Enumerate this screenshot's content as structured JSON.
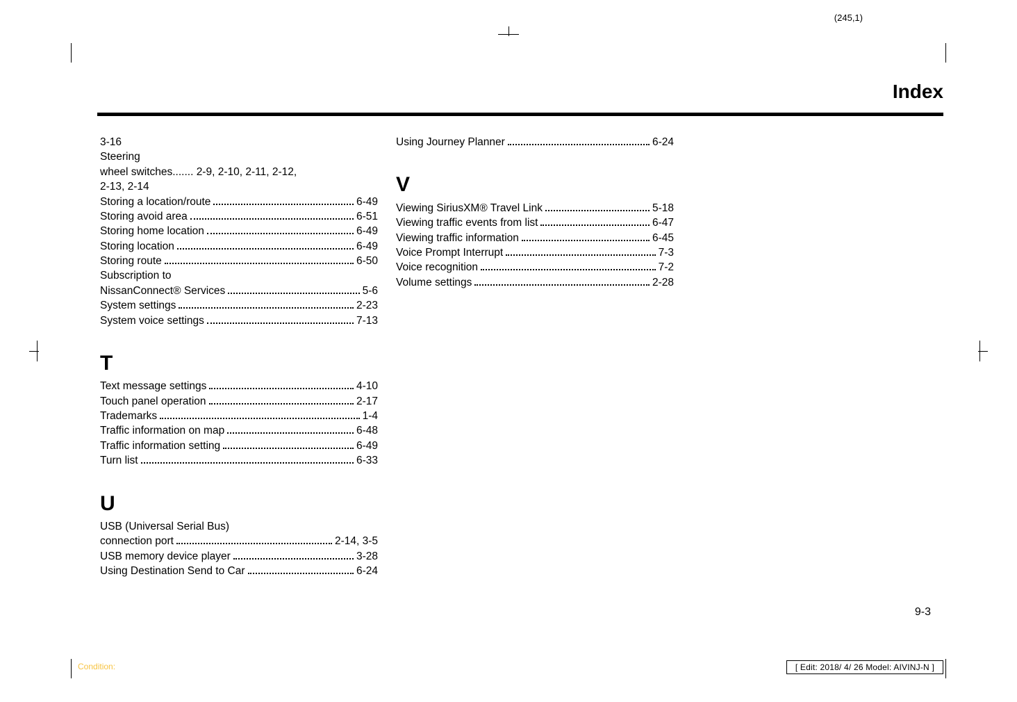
{
  "meta": {
    "top_pageref": "(245,1)",
    "page_title": "Index",
    "page_number": "9-3",
    "condition_label": "Condition:",
    "edit_line": "[ Edit: 2018/ 4/ 26    Model: AIVINJ-N ]"
  },
  "col1": {
    "lead_lines": [
      "3-16",
      "Steering",
      "wheel switches....... 2-9, 2-10, 2-11, 2-12,",
      "2-13, 2-14"
    ],
    "entries_a": [
      {
        "label": "Storing a location/route",
        "ref": "6-49"
      },
      {
        "label": "Storing avoid area",
        "ref": "6-51"
      },
      {
        "label": "Storing home location",
        "ref": "6-49"
      },
      {
        "label": "Storing location",
        "ref": "6-49"
      },
      {
        "label": "Storing route",
        "ref": "6-50"
      }
    ],
    "sub_lines": [
      "Subscription to"
    ],
    "entries_b": [
      {
        "label": "NissanConnect® Services",
        "ref": "5-6"
      },
      {
        "label": "System settings",
        "ref": "2-23"
      },
      {
        "label": "System voice settings",
        "ref": "7-13"
      }
    ],
    "section_T": "T",
    "entries_T": [
      {
        "label": "Text message settings",
        "ref": "4-10"
      },
      {
        "label": "Touch panel operation",
        "ref": "2-17"
      },
      {
        "label": "Trademarks",
        "ref": "1-4"
      },
      {
        "label": "Traffic information on map",
        "ref": "6-48"
      },
      {
        "label": "Traffic information setting",
        "ref": "6-49"
      },
      {
        "label": "Turn list",
        "ref": "6-33"
      }
    ],
    "section_U": "U",
    "u_lead": "USB (Universal Serial Bus)",
    "entries_U": [
      {
        "label": "connection port",
        "ref": "2-14, 3-5"
      },
      {
        "label": "USB memory device player",
        "ref": "3-28"
      },
      {
        "label": "Using Destination Send to Car",
        "ref": "6-24"
      }
    ]
  },
  "col2": {
    "entries_top": [
      {
        "label": "Using Journey Planner",
        "ref": "6-24"
      }
    ],
    "section_V": "V",
    "entries_V": [
      {
        "label": "Viewing SiriusXM® Travel Link",
        "ref": "5-18"
      },
      {
        "label": "Viewing traffic events from list",
        "ref": "6-47"
      },
      {
        "label": "Viewing traffic information",
        "ref": "6-45"
      },
      {
        "label": "Voice Prompt Interrupt",
        "ref": "7-3"
      },
      {
        "label": "Voice recognition",
        "ref": "7-2"
      },
      {
        "label": "Volume settings",
        "ref": "2-28"
      }
    ]
  }
}
